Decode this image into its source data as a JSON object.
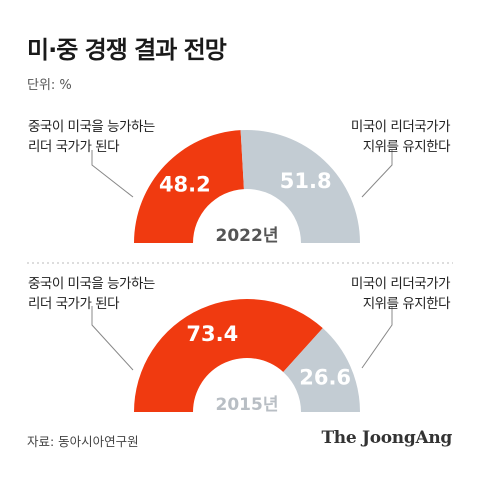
{
  "title": "미·중 경쟁 결과 전망",
  "unit_label": "단위: %",
  "source": "자료: 동아시아연구원",
  "brand": "The JoongAng",
  "colors": {
    "china": "#f03a10",
    "us": "#c3ccd3",
    "divider": "#bbbbbb"
  },
  "chart_data": [
    {
      "type": "pie",
      "year": "2022년",
      "slices": [
        {
          "label": "중국이 미국을 능가하는 리더 국가가 된다",
          "value": 48.2
        },
        {
          "label": "미국이 리더국가 지위를 유지한다",
          "value": 51.8
        }
      ]
    },
    {
      "type": "pie",
      "year": "2015년",
      "slices": [
        {
          "label": "중국이 미국을 능가하는 리더 국가가 된다",
          "value": 73.4
        },
        {
          "label": "미국이 리더국가 지위를 유지한다",
          "value": 26.6
        }
      ]
    }
  ],
  "labels": {
    "c1_left": [
      "중국이 미국을 능가하는",
      "리더 국가가 된다"
    ],
    "c1_right": [
      "미국이 리더국가가",
      "지위를 유지한다"
    ],
    "c2_left": [
      "중국이 미국을 능가하는",
      "리더 국가가 된다"
    ],
    "c2_right": [
      "미국이 리더국가가",
      "지위를 유지한다"
    ]
  }
}
